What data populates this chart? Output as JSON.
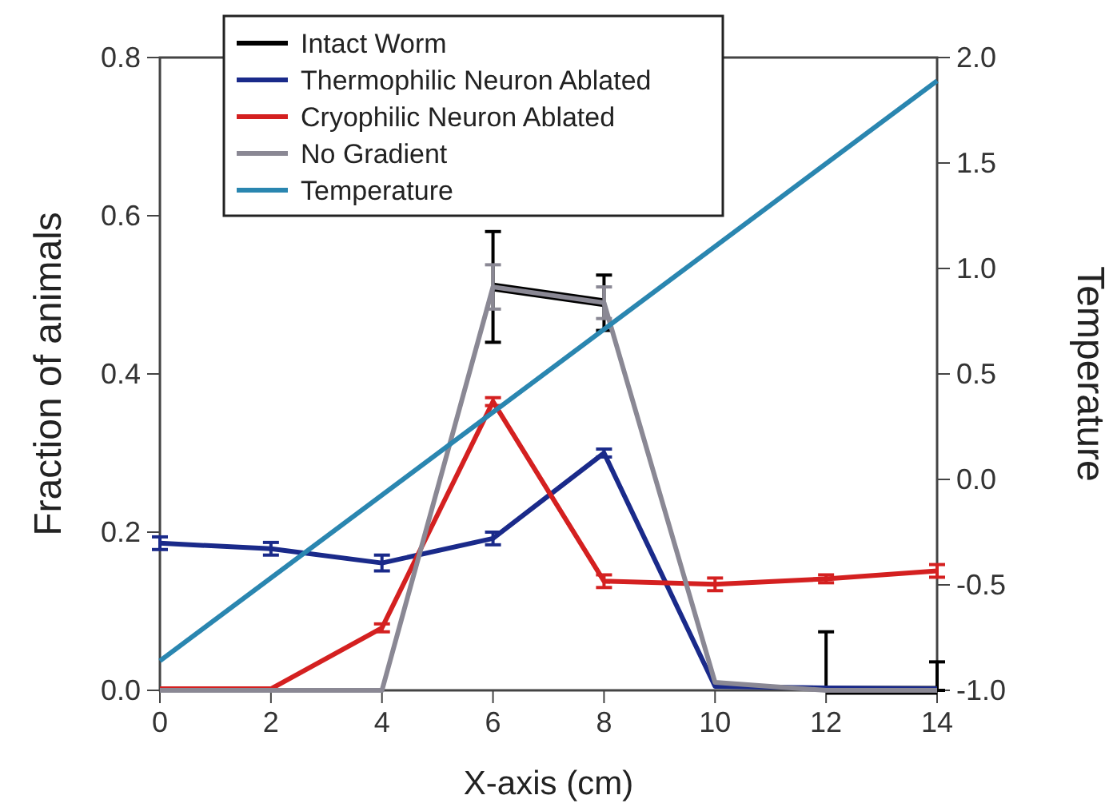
{
  "chart_data": {
    "type": "line",
    "xlabel": "X-axis (cm)",
    "ylabel": "Fraction of animals",
    "y2label": "Temperature",
    "x": [
      0,
      2,
      4,
      6,
      8,
      10,
      12,
      14
    ],
    "xlim": [
      0,
      14
    ],
    "xticks": [
      0,
      2,
      4,
      6,
      8,
      10,
      12,
      14
    ],
    "ylim": [
      0,
      0.8
    ],
    "yticks": [
      {
        "value": 0,
        "label": "0.0"
      },
      0.2,
      0.4,
      0.6,
      0.8
    ],
    "y2lim": [
      -1,
      2
    ],
    "y2ticks": [
      {
        "value": -1,
        "label": "-1.0"
      },
      -0.5,
      {
        "value": 0,
        "label": "0.0"
      },
      0.5,
      {
        "value": 1,
        "label": "1.0"
      },
      1.5,
      {
        "value": 2,
        "label": "2.0"
      }
    ],
    "legend": "top left",
    "grid": false,
    "marker": "none",
    "series": [
      {
        "name": "Intact Worm",
        "color": "#000000",
        "values": [
          null,
          null,
          null,
          0.51,
          0.49,
          null,
          0,
          0
        ],
        "errors": [
          null,
          null,
          null,
          0.07,
          0.035,
          null,
          [
            0,
            0.074
          ],
          [
            0,
            0.036
          ]
        ]
      },
      {
        "name": "Thermophilic Neuron Ablated",
        "color": "#1a2a8a",
        "values": [
          0.186,
          0.179,
          0.161,
          0.192,
          0.3,
          0.005,
          0.003,
          0.002
        ],
        "errors": [
          0.008,
          0.008,
          0.01,
          0.008,
          0.005,
          null,
          null,
          null
        ]
      },
      {
        "name": "Cryophilic Neuron Ablated",
        "color": "#d42020",
        "values": [
          0.002,
          0.002,
          0.079,
          0.365,
          0.138,
          0.134,
          0.141,
          0.151
        ],
        "errors": [
          null,
          null,
          0.005,
          0.005,
          0.008,
          0.008,
          0.005,
          0.008
        ]
      },
      {
        "name": "No Gradient",
        "color": "#8a8894",
        "values": [
          0,
          0,
          0,
          0.51,
          0.49,
          0.01,
          0,
          0
        ],
        "errors": [
          null,
          null,
          null,
          0.028,
          0.02,
          null,
          null,
          null
        ]
      },
      {
        "name": "Temperature",
        "color": "#2a86b0",
        "axis": "y2",
        "x": [
          0,
          14
        ],
        "values": [
          -0.86,
          1.89
        ]
      }
    ]
  }
}
